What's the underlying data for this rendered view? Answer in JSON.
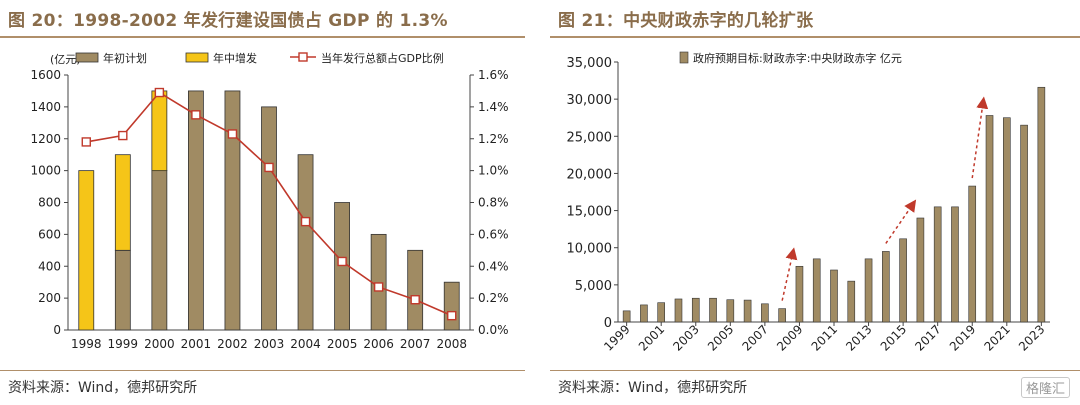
{
  "colors": {
    "accent": "#8a6d4b",
    "bar_brown": "#a08b63",
    "bar_yellow": "#f5c518",
    "line_red": "#c0392b",
    "arrow_red": "#c0392b"
  },
  "left": {
    "title": "图 20：1998-2002 年发行建设国债占 GDP 的 1.3%",
    "source": "资料来源：Wind，德邦研究所",
    "chart_data": {
      "type": "bar",
      "unit_label": "(亿元)",
      "categories": [
        "1998",
        "1999",
        "2000",
        "2001",
        "2002",
        "2003",
        "2004",
        "2005",
        "2006",
        "2007",
        "2008"
      ],
      "series": [
        {
          "name": "年初计划",
          "values": [
            0,
            500,
            1000,
            1500,
            1500,
            1400,
            1100,
            800,
            600,
            500,
            300
          ]
        },
        {
          "name": "年中增发",
          "values": [
            1000,
            600,
            500,
            0,
            0,
            0,
            0,
            0,
            0,
            0,
            0
          ]
        },
        {
          "name": "当年发行总额占GDP比例",
          "type": "line",
          "axis": "right",
          "values": [
            1.18,
            1.22,
            1.49,
            1.35,
            1.23,
            1.02,
            0.68,
            0.43,
            0.27,
            0.19,
            0.09
          ]
        }
      ],
      "ylim": [
        0,
        1600
      ],
      "yticks": [
        "0",
        "200",
        "400",
        "600",
        "800",
        "1000",
        "1200",
        "1400",
        "1600"
      ],
      "y2lim": [
        0,
        1.6
      ],
      "y2ticks": [
        "0.0%",
        "0.2%",
        "0.4%",
        "0.6%",
        "0.8%",
        "1.0%",
        "1.2%",
        "1.4%",
        "1.6%"
      ],
      "legend": "top"
    }
  },
  "right": {
    "title": "图 21：中央财政赤字的几轮扩张",
    "source": "资料来源：Wind，德邦研究所",
    "watermark": "格隆汇",
    "chart_data": {
      "type": "bar",
      "categories": [
        "1999",
        "2000",
        "2001",
        "2002",
        "2003",
        "2004",
        "2005",
        "2006",
        "2007",
        "2008",
        "2009",
        "2010",
        "2011",
        "2012",
        "2013",
        "2014",
        "2015",
        "2016",
        "2017",
        "2018",
        "2019",
        "2020",
        "2021",
        "2022",
        "2023"
      ],
      "xticks": [
        "1999",
        "2001",
        "2003",
        "2005",
        "2007",
        "2009",
        "2011",
        "2013",
        "2015",
        "2017",
        "2019",
        "2021",
        "2023"
      ],
      "series": [
        {
          "name": "政府预期目标:财政赤字:中央财政赤字 亿元",
          "values": [
            1500,
            2300,
            2600,
            3100,
            3200,
            3200,
            3000,
            2950,
            2450,
            1800,
            7500,
            8500,
            7000,
            5500,
            8500,
            9500,
            11200,
            14000,
            15500,
            15500,
            18300,
            27800,
            27500,
            26500,
            31600
          ]
        }
      ],
      "ylim": [
        0,
        35000
      ],
      "yticks": [
        "0",
        "5,000",
        "10,000",
        "15,000",
        "20,000",
        "25,000",
        "30,000",
        "35,000"
      ],
      "arrows": [
        {
          "from": "2008",
          "to": "2009"
        },
        {
          "from": "2014",
          "to": "2016"
        },
        {
          "from": "2019",
          "to": "2020"
        }
      ],
      "legend": "top"
    }
  }
}
